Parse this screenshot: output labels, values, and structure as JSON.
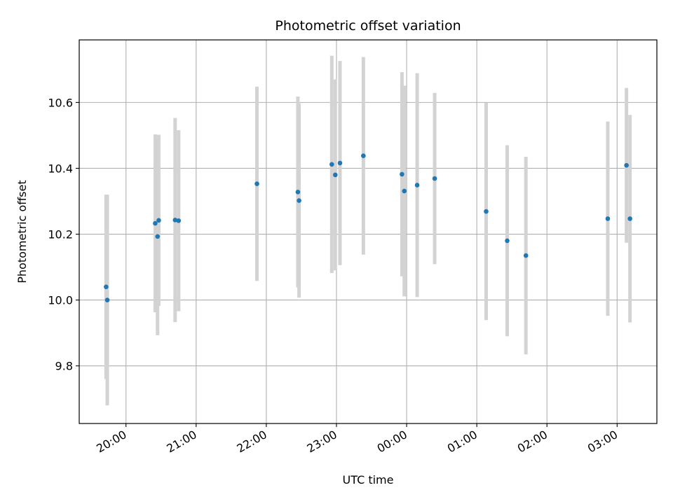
{
  "chart_data": {
    "type": "scatter",
    "title": "Photometric offset variation",
    "xlabel": "UTC time",
    "ylabel": "Photometric offset",
    "x_axis_kind": "time (hours, wraps past midnight)",
    "xlim": [
      "19:20",
      "03:34"
    ],
    "ylim": [
      9.625,
      10.79
    ],
    "grid": true,
    "x_ticks": [
      "20:00",
      "21:00",
      "22:00",
      "23:00",
      "00:00",
      "01:00",
      "02:00",
      "03:00"
    ],
    "y_ticks": [
      "9.8",
      "10.0",
      "10.2",
      "10.4",
      "10.6"
    ],
    "colors": {
      "point": "#1f77b4",
      "errorbar": "#d3d3d3",
      "grid": "#b0b0b0"
    },
    "points": [
      {
        "time": "19:43",
        "y": 10.04,
        "yerr": 0.28
      },
      {
        "time": "19:44",
        "y": 10.0,
        "yerr": 0.32
      },
      {
        "time": "20:25",
        "y": 10.233,
        "yerr": 0.27
      },
      {
        "time": "20:27",
        "y": 10.193,
        "yerr": 0.3
      },
      {
        "time": "20:28",
        "y": 10.242,
        "yerr": 0.26
      },
      {
        "time": "20:42",
        "y": 10.243,
        "yerr": 0.31
      },
      {
        "time": "20:45",
        "y": 10.241,
        "yerr": 0.275
      },
      {
        "time": "21:52",
        "y": 10.353,
        "yerr": 0.295
      },
      {
        "time": "22:27",
        "y": 10.328,
        "yerr": 0.29
      },
      {
        "time": "22:28",
        "y": 10.302,
        "yerr": 0.295
      },
      {
        "time": "22:56",
        "y": 10.412,
        "yerr": 0.33
      },
      {
        "time": "22:59",
        "y": 10.38,
        "yerr": 0.29
      },
      {
        "time": "23:03",
        "y": 10.416,
        "yerr": 0.31
      },
      {
        "time": "23:23",
        "y": 10.438,
        "yerr": 0.3
      },
      {
        "time": "23:56",
        "y": 10.382,
        "yerr": 0.31
      },
      {
        "time": "23:58",
        "y": 10.331,
        "yerr": 0.32
      },
      {
        "time": "00:09",
        "y": 10.349,
        "yerr": 0.34
      },
      {
        "time": "00:24",
        "y": 10.369,
        "yerr": 0.26
      },
      {
        "time": "01:08",
        "y": 10.269,
        "yerr": 0.33
      },
      {
        "time": "01:26",
        "y": 10.18,
        "yerr": 0.29
      },
      {
        "time": "01:42",
        "y": 10.135,
        "yerr": 0.3
      },
      {
        "time": "02:52",
        "y": 10.247,
        "yerr": 0.295
      },
      {
        "time": "03:08",
        "y": 10.409,
        "yerr": 0.235
      },
      {
        "time": "03:11",
        "y": 10.247,
        "yerr": 0.315
      }
    ]
  }
}
